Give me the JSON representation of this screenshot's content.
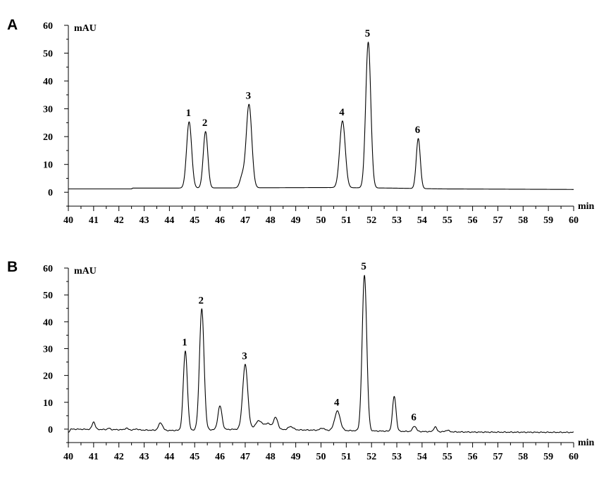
{
  "chart_data": [
    {
      "type": "line",
      "panel_label": "A",
      "ylabel": "mAU",
      "xlabel": "min",
      "xlim": [
        40,
        60
      ],
      "ylim": [
        -5,
        60
      ],
      "x_ticks": [
        40,
        41,
        42,
        43,
        44,
        45,
        46,
        47,
        48,
        49,
        50,
        51,
        52,
        53,
        54,
        55,
        56,
        57,
        58,
        59,
        60
      ],
      "y_ticks": [
        0,
        10,
        20,
        30,
        40,
        50,
        60
      ],
      "baseline": [
        [
          40,
          1.2
        ],
        [
          42.5,
          1.2
        ],
        [
          42.55,
          1.5
        ],
        [
          44.3,
          1.5
        ],
        [
          50.3,
          1.7
        ],
        [
          52.7,
          1.5
        ],
        [
          54.8,
          1.2
        ],
        [
          60,
          1.0
        ]
      ],
      "peaks": [
        {
          "label": "1",
          "x": 44.78,
          "height": 23.8,
          "width": 0.1
        },
        {
          "label": "2",
          "x": 45.43,
          "height": 20.3,
          "width": 0.09
        },
        {
          "label": "",
          "x": 46.88,
          "height": 4.0,
          "width": 0.09
        },
        {
          "label": "3",
          "x": 47.15,
          "height": 30.0,
          "width": 0.11
        },
        {
          "label": "4",
          "x": 50.85,
          "height": 24.0,
          "width": 0.11
        },
        {
          "label": "5",
          "x": 51.87,
          "height": 52.4,
          "width": 0.1
        },
        {
          "label": "6",
          "x": 53.85,
          "height": 18.0,
          "width": 0.08
        }
      ]
    },
    {
      "type": "line",
      "panel_label": "B",
      "ylabel": "mAU",
      "xlabel": "min",
      "xlim": [
        40,
        60
      ],
      "ylim": [
        -5,
        60
      ],
      "x_ticks": [
        40,
        41,
        42,
        43,
        44,
        45,
        46,
        47,
        48,
        49,
        50,
        51,
        52,
        53,
        54,
        55,
        56,
        57,
        58,
        59,
        60
      ],
      "y_ticks": [
        0,
        10,
        20,
        30,
        40,
        50,
        60
      ],
      "baseline": [
        [
          40,
          -1.2
        ],
        [
          40.1,
          0.0
        ],
        [
          42.0,
          -0.2
        ],
        [
          44.0,
          -0.5
        ],
        [
          47.0,
          0.0
        ],
        [
          50.0,
          -0.4
        ],
        [
          53.0,
          -0.8
        ],
        [
          56.0,
          -1.1
        ],
        [
          60,
          -1.2
        ]
      ],
      "peaks": [
        {
          "label": "",
          "x": 41.0,
          "height": 2.8,
          "width": 0.06
        },
        {
          "label": "",
          "x": 41.6,
          "height": 0.5,
          "width": 0.05
        },
        {
          "label": "",
          "x": 42.3,
          "height": 0.6,
          "width": 0.06
        },
        {
          "label": "",
          "x": 42.7,
          "height": 0.4,
          "width": 0.06
        },
        {
          "label": "",
          "x": 43.65,
          "height": 2.8,
          "width": 0.08
        },
        {
          "label": "1",
          "x": 44.63,
          "height": 29.5,
          "width": 0.08
        },
        {
          "label": "2",
          "x": 45.28,
          "height": 45.0,
          "width": 0.09
        },
        {
          "label": "",
          "x": 46.0,
          "height": 8.8,
          "width": 0.08
        },
        {
          "label": "3",
          "x": 47.0,
          "height": 24.0,
          "width": 0.1
        },
        {
          "label": "",
          "x": 47.55,
          "height": 3.2,
          "width": 0.14
        },
        {
          "label": "",
          "x": 47.9,
          "height": 2.2,
          "width": 0.1
        },
        {
          "label": "",
          "x": 48.2,
          "height": 4.5,
          "width": 0.09
        },
        {
          "label": "",
          "x": 48.8,
          "height": 1.2,
          "width": 0.1
        },
        {
          "label": "",
          "x": 50.05,
          "height": 0.8,
          "width": 0.08
        },
        {
          "label": "4",
          "x": 50.65,
          "height": 7.2,
          "width": 0.11
        },
        {
          "label": "5",
          "x": 51.72,
          "height": 58.0,
          "width": 0.09
        },
        {
          "label": "",
          "x": 52.9,
          "height": 13.0,
          "width": 0.07
        },
        {
          "label": "6",
          "x": 53.7,
          "height": 2.0,
          "width": 0.07
        },
        {
          "label": "",
          "x": 54.52,
          "height": 1.8,
          "width": 0.06
        },
        {
          "label": "",
          "x": 55.0,
          "height": 0.6,
          "width": 0.07
        }
      ]
    }
  ]
}
